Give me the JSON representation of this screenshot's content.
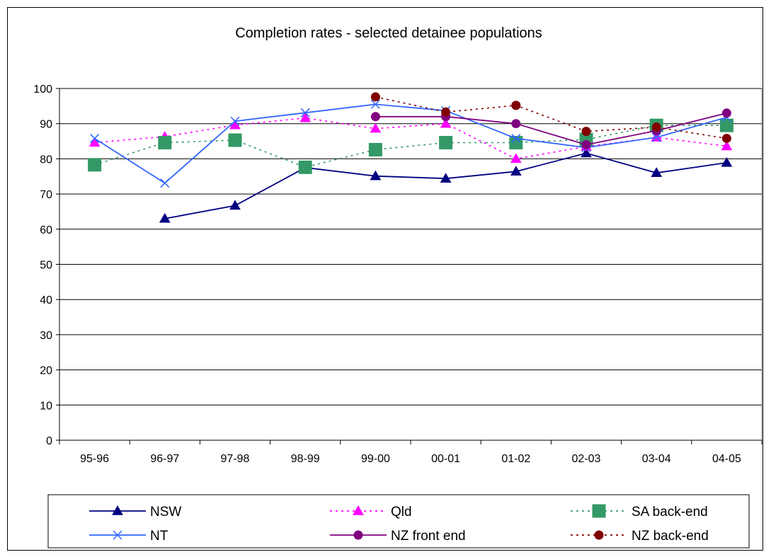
{
  "chart_data": {
    "type": "line",
    "title": "Completion rates - selected detainee populations",
    "xlabel": "",
    "ylabel": "",
    "categories": [
      "95-96",
      "96-97",
      "97-98",
      "98-99",
      "99-00",
      "00-01",
      "01-02",
      "02-03",
      "03-04",
      "04-05"
    ],
    "ylim": [
      0,
      100
    ],
    "yticks": [
      0,
      10,
      20,
      30,
      40,
      50,
      60,
      70,
      80,
      90,
      100
    ],
    "grid": "horizontal",
    "legend_position": "bottom",
    "series": [
      {
        "name": "NSW",
        "color": "#000080",
        "line": "solid",
        "marker": "triangle",
        "values": [
          null,
          63,
          66.7,
          77.5,
          75.1,
          74.4,
          76.4,
          81.6,
          76,
          78.9
        ]
      },
      {
        "name": "Qld",
        "color": "#ff00ff",
        "line": "dotted",
        "marker": "triangle",
        "values": [
          84.6,
          86.3,
          89.6,
          91.6,
          88.6,
          90,
          80,
          83.5,
          86.1,
          83.6
        ]
      },
      {
        "name": "SA back-end",
        "color": "#339966",
        "line": "dotted",
        "marker": "square",
        "values": [
          78.3,
          84.6,
          85.3,
          77.6,
          82.6,
          84.6,
          84.6,
          85.5,
          89.5,
          89.5
        ]
      },
      {
        "name": "NT",
        "color": "#3366ff",
        "line": "solid",
        "marker": "x",
        "values": [
          85.8,
          73.1,
          90.7,
          93.1,
          95.5,
          93.7,
          85.8,
          83.2,
          86.1,
          91.8
        ]
      },
      {
        "name": "NZ front end",
        "color": "#800080",
        "line": "solid",
        "marker": "circle",
        "values": [
          null,
          null,
          null,
          null,
          92,
          92,
          90,
          84,
          88,
          93
        ]
      },
      {
        "name": "NZ back-end",
        "color": "#800000",
        "line": "dotted",
        "marker": "circle",
        "values": [
          null,
          null,
          null,
          null,
          97.6,
          93.3,
          95.2,
          87.8,
          89,
          85.8
        ]
      }
    ]
  }
}
